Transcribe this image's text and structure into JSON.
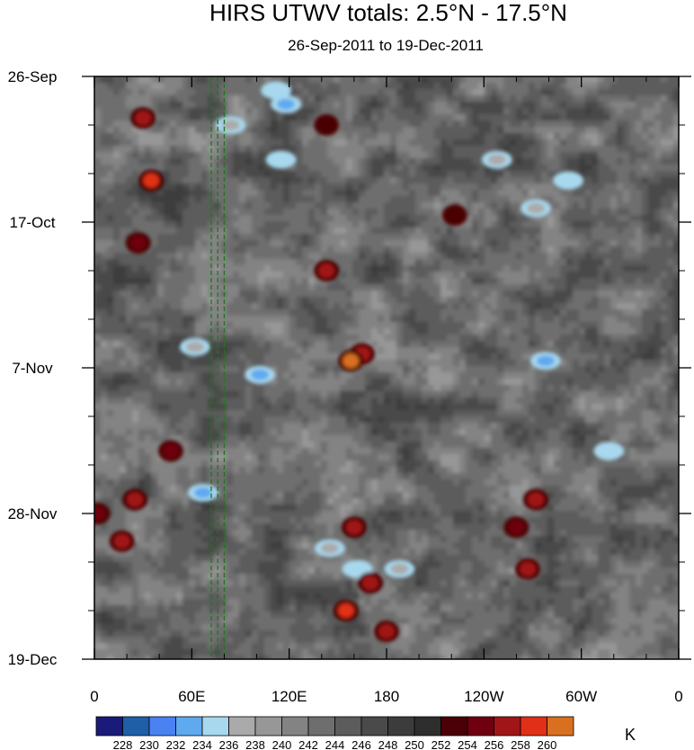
{
  "chart_data": {
    "type": "heatmap",
    "title": "HIRS UTWV totals: 2.5°N - 17.5°N",
    "subtitle": "26-Sep-2011 to 19-Dec-2011",
    "x_ticks": [
      "0",
      "60E",
      "120E",
      "180",
      "120W",
      "60W",
      "0"
    ],
    "x_tick_values": [
      0,
      60,
      120,
      180,
      240,
      300,
      360
    ],
    "xlim": [
      0,
      360
    ],
    "y_ticks": [
      "26-Sep",
      "17-Oct",
      "7-Nov",
      "28-Nov",
      "19-Dec"
    ],
    "y_tick_values": [
      "2011-09-26",
      "2011-10-17",
      "2011-11-07",
      "2011-11-28",
      "2011-12-19"
    ],
    "ylim": [
      "2011-09-26",
      "2011-12-19"
    ],
    "y_inverted": true,
    "colorbar": {
      "labels": [
        "228",
        "230",
        "232",
        "234",
        "236",
        "238",
        "240",
        "242",
        "244",
        "246",
        "248",
        "250",
        "252",
        "254",
        "256",
        "258",
        "260"
      ],
      "colors": [
        "#1a1a7a",
        "#1f5fa8",
        "#4a82f2",
        "#5fa9f0",
        "#a8d8ee",
        "#aaaaaa",
        "#979797",
        "#838383",
        "#6e6e6e",
        "#5c5c5c",
        "#4a4a4a",
        "#3c3c3c",
        "#2e2e2e",
        "#4a0006",
        "#6e0010",
        "#a01518",
        "#e03018",
        "#d87020"
      ],
      "units": "K",
      "position": "bottom"
    },
    "reference_lines": {
      "style": "dashed",
      "color": "#1a7a1a",
      "x_values": [
        72,
        76,
        80
      ]
    },
    "warm_features": [
      {
        "x": 30,
        "date": "2011-10-02",
        "value": 256
      },
      {
        "x": 35,
        "date": "2011-10-11",
        "value": 258
      },
      {
        "x": 27,
        "date": "2011-10-20",
        "value": 254
      },
      {
        "x": 143,
        "date": "2011-10-03",
        "value": 252
      },
      {
        "x": 143,
        "date": "2011-10-24",
        "value": 256
      },
      {
        "x": 165,
        "date": "2011-11-05",
        "value": 256
      },
      {
        "x": 158,
        "date": "2011-11-06",
        "value": 260
      },
      {
        "x": 25,
        "date": "2011-11-26",
        "value": 256
      },
      {
        "x": 17,
        "date": "2011-12-02",
        "value": 256
      },
      {
        "x": 47,
        "date": "2011-11-19",
        "value": 254
      },
      {
        "x": 160,
        "date": "2011-11-30",
        "value": 256
      },
      {
        "x": 170,
        "date": "2011-12-08",
        "value": 256
      },
      {
        "x": 155,
        "date": "2011-12-12",
        "value": 258
      },
      {
        "x": 180,
        "date": "2011-12-15",
        "value": 256
      },
      {
        "x": 272,
        "date": "2011-11-26",
        "value": 256
      },
      {
        "x": 267,
        "date": "2011-12-06",
        "value": 256
      },
      {
        "x": 260,
        "date": "2011-11-30",
        "value": 254
      },
      {
        "x": 222,
        "date": "2011-10-16",
        "value": 252
      },
      {
        "x": 2,
        "date": "2011-11-28",
        "value": 254
      }
    ],
    "cold_features": [
      {
        "x": 112,
        "date": "2011-09-28",
        "value": 234
      },
      {
        "x": 118,
        "date": "2011-09-30",
        "value": 232
      },
      {
        "x": 115,
        "date": "2011-10-08",
        "value": 234
      },
      {
        "x": 84,
        "date": "2011-10-03",
        "value": 236
      },
      {
        "x": 102,
        "date": "2011-11-08",
        "value": 232
      },
      {
        "x": 278,
        "date": "2011-11-06",
        "value": 232
      },
      {
        "x": 292,
        "date": "2011-10-11",
        "value": 234
      },
      {
        "x": 67,
        "date": "2011-11-25",
        "value": 232
      },
      {
        "x": 162,
        "date": "2011-12-06",
        "value": 234
      },
      {
        "x": 145,
        "date": "2011-12-03",
        "value": 236
      },
      {
        "x": 317,
        "date": "2011-11-19",
        "value": 234
      },
      {
        "x": 248,
        "date": "2011-10-08",
        "value": 236
      },
      {
        "x": 272,
        "date": "2011-10-15",
        "value": 236
      },
      {
        "x": 188,
        "date": "2011-12-06",
        "value": 236
      },
      {
        "x": 62,
        "date": "2011-11-04",
        "value": 236
      }
    ]
  }
}
